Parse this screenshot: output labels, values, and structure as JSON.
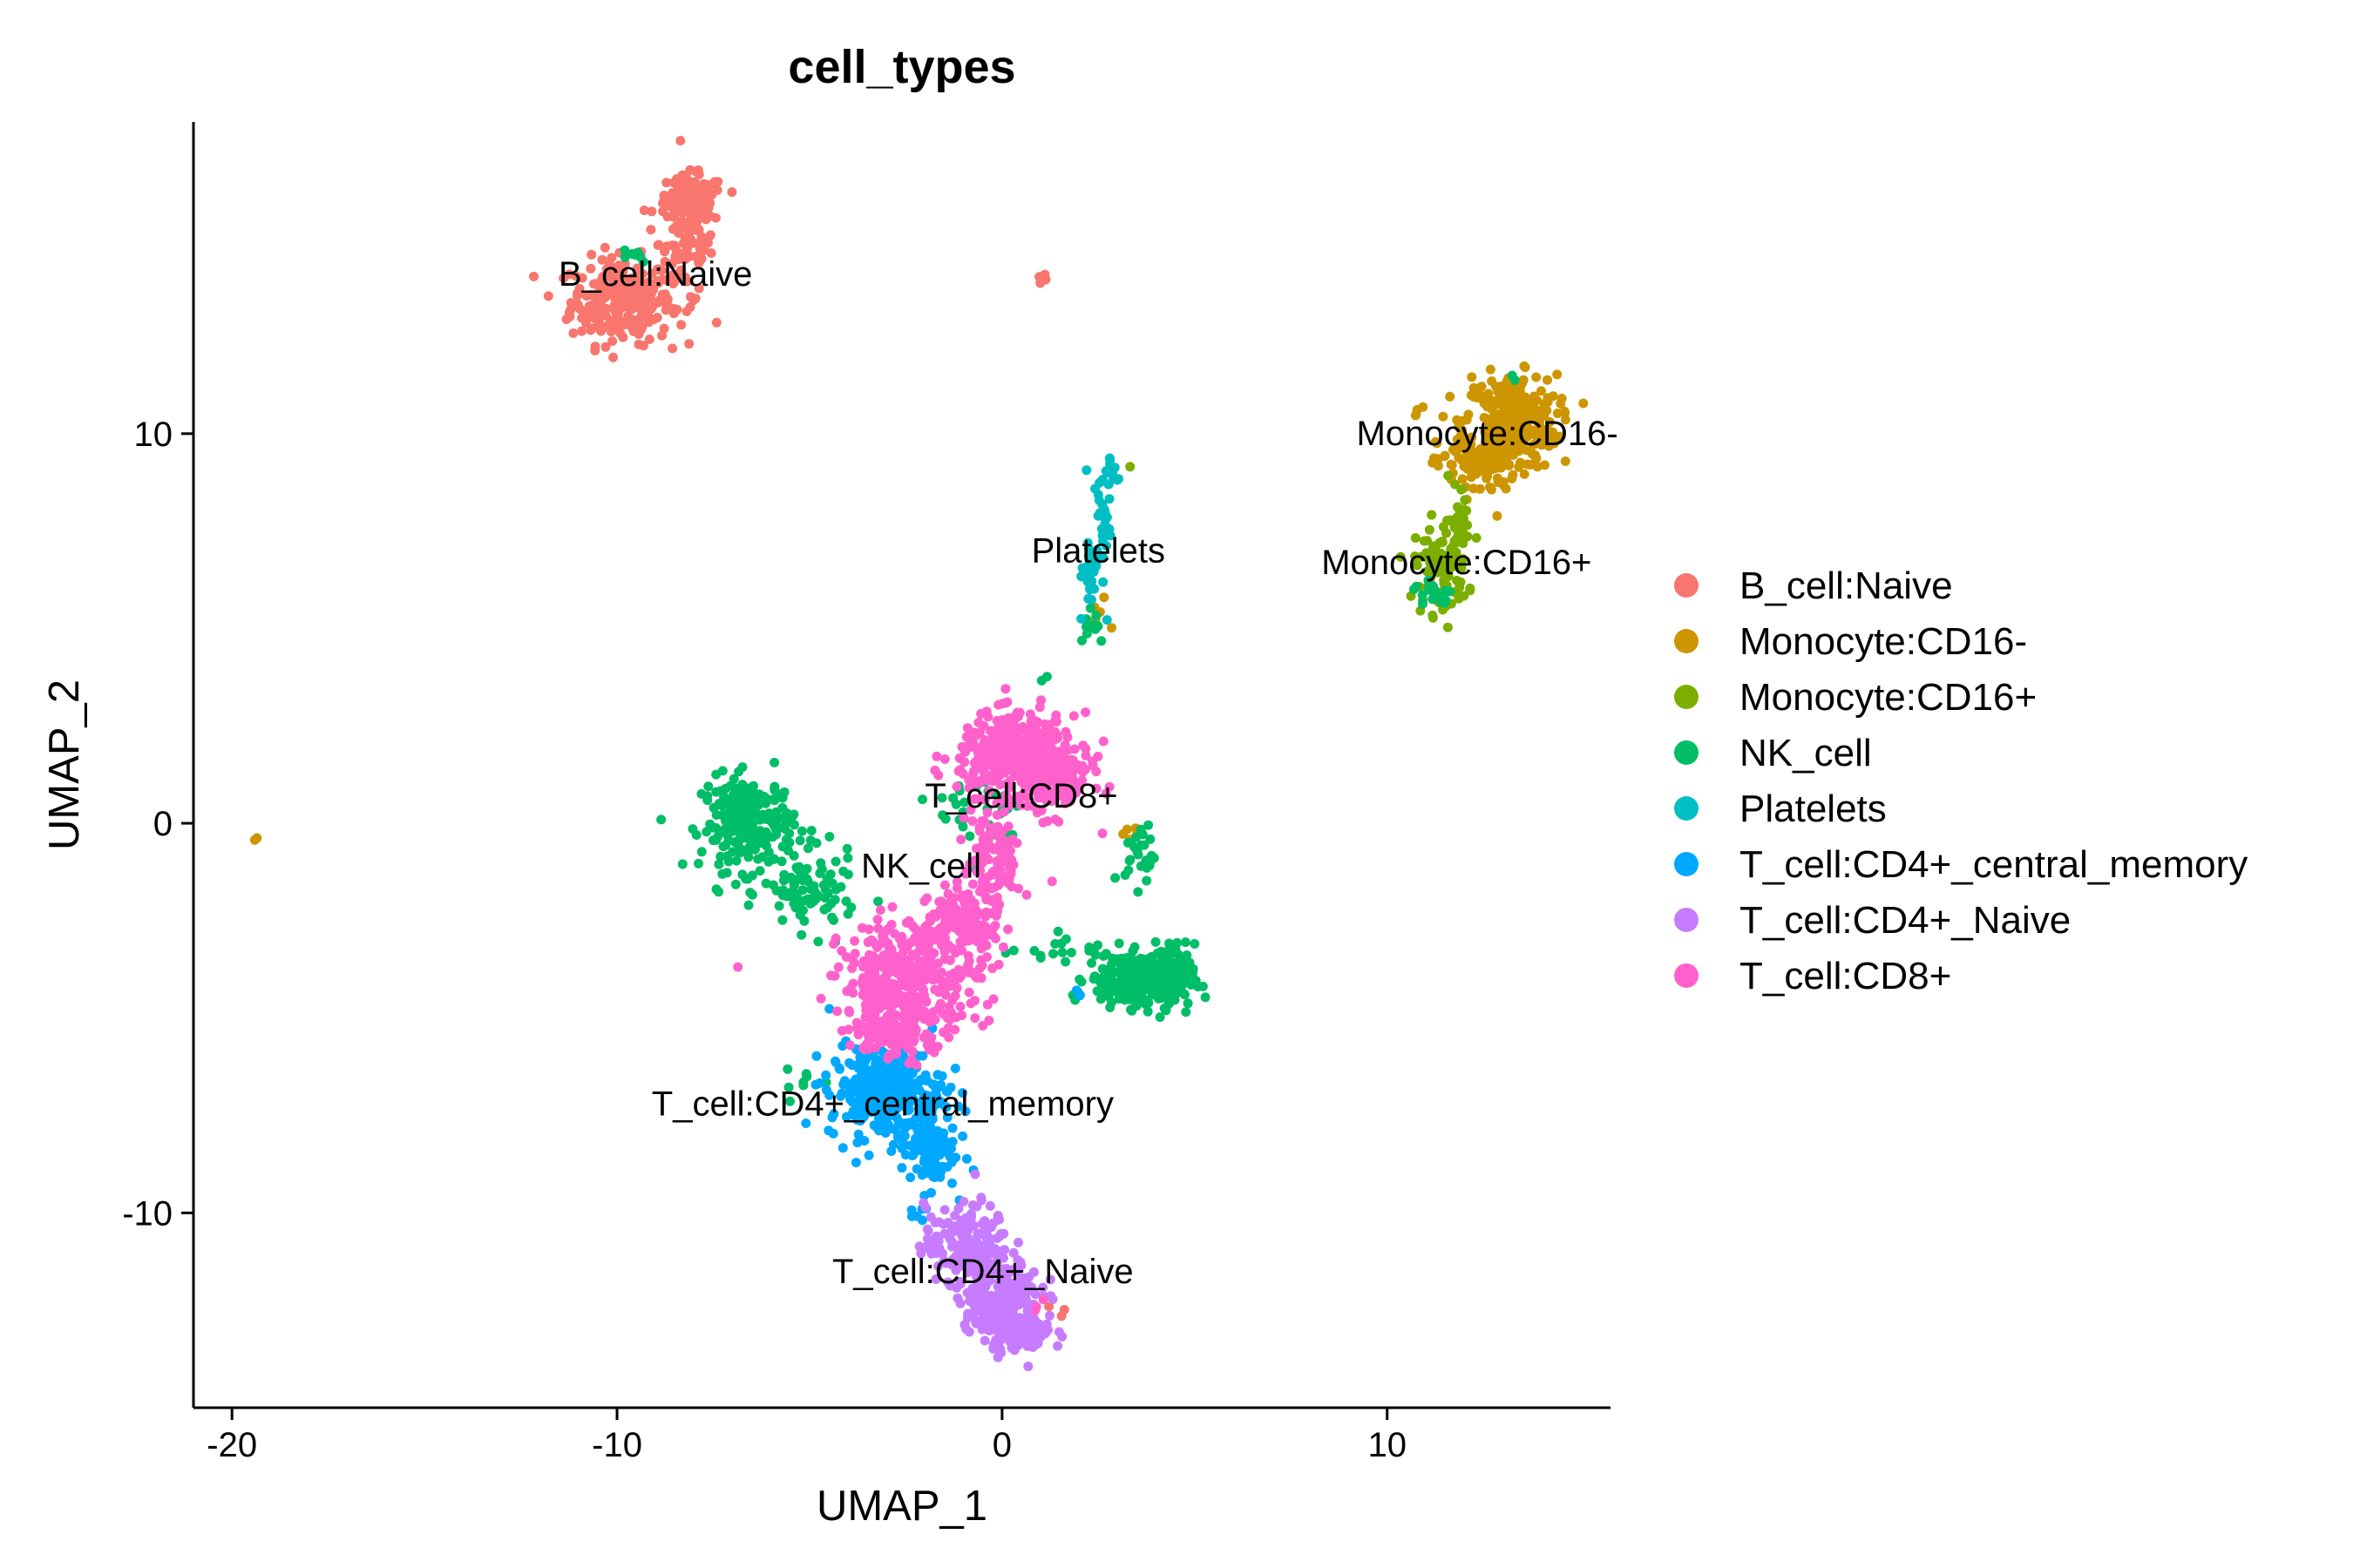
{
  "chart_data": {
    "type": "scatter",
    "title": "cell_types",
    "xlabel": "UMAP_1",
    "ylabel": "UMAP_2",
    "xlim": [
      -21,
      15.8
    ],
    "ylim": [
      -15,
      18
    ],
    "xticks": [
      -20,
      -10,
      0,
      10
    ],
    "yticks": [
      -10,
      0,
      10
    ],
    "grid": false,
    "legend_position": "right",
    "series": [
      {
        "name": "B_cell:Naive",
        "color": "#F8766D",
        "clusters": [
          {
            "cx": -9.9,
            "cy": 13.4,
            "sx": 0.65,
            "sy": 0.55,
            "n": 260
          },
          {
            "cx": -8.2,
            "cy": 14.9,
            "sx": 0.35,
            "sy": 0.8,
            "n": 110
          },
          {
            "cx": -8.1,
            "cy": 16.0,
            "sx": 0.45,
            "sy": 0.3,
            "n": 90
          },
          {
            "cx": 1.1,
            "cy": 14.0,
            "sx": 0.1,
            "sy": 0.08,
            "n": 4
          },
          {
            "cx": 1.5,
            "cy": -12.5,
            "sx": 0.1,
            "sy": 0.1,
            "n": 3
          }
        ]
      },
      {
        "name": "Monocyte:CD16-",
        "color": "#CD9600",
        "clusters": [
          {
            "cx": 13.2,
            "cy": 10.3,
            "sx": 0.6,
            "sy": 0.6,
            "n": 330
          },
          {
            "cx": 12.3,
            "cy": 9.2,
            "sx": 0.5,
            "sy": 0.4,
            "n": 80
          },
          {
            "cx": 10.8,
            "cy": 10.5,
            "sx": 0.15,
            "sy": 0.1,
            "n": 4
          },
          {
            "cx": 3.4,
            "cy": -0.3,
            "sx": 0.2,
            "sy": 0.15,
            "n": 5
          },
          {
            "cx": 2.5,
            "cy": 5.3,
            "sx": 0.15,
            "sy": 0.3,
            "n": 5
          },
          {
            "cx": -19.4,
            "cy": -0.4,
            "sx": 0.05,
            "sy": 0.05,
            "n": 2
          }
        ]
      },
      {
        "name": "Monocyte:CD16+",
        "color": "#7CAE00",
        "clusters": [
          {
            "cx": 11.4,
            "cy": 6.6,
            "sx": 0.35,
            "sy": 0.6,
            "n": 90
          },
          {
            "cx": 11.9,
            "cy": 7.8,
            "sx": 0.2,
            "sy": 0.5,
            "n": 30
          },
          {
            "cx": 3.3,
            "cy": 9.1,
            "sx": 0.05,
            "sy": 0.05,
            "n": 1
          }
        ]
      },
      {
        "name": "NK_cell",
        "color": "#00BE67",
        "clusters": [
          {
            "cx": -6.6,
            "cy": 0.0,
            "sx": 0.6,
            "sy": 0.6,
            "n": 230
          },
          {
            "cx": -5.0,
            "cy": -1.8,
            "sx": 0.6,
            "sy": 0.5,
            "n": 90
          },
          {
            "cx": 3.3,
            "cy": -4.0,
            "sx": 0.55,
            "sy": 0.35,
            "n": 180
          },
          {
            "cx": 4.3,
            "cy": -4.0,
            "sx": 0.35,
            "sy": 0.45,
            "n": 120
          },
          {
            "cx": 3.6,
            "cy": -0.8,
            "sx": 0.2,
            "sy": 0.4,
            "n": 30
          },
          {
            "cx": 1.2,
            "cy": -3.2,
            "sx": 0.6,
            "sy": 0.2,
            "n": 15
          },
          {
            "cx": -0.5,
            "cy": 0.3,
            "sx": 0.6,
            "sy": 0.6,
            "n": 35
          },
          {
            "cx": -9.6,
            "cy": 14.6,
            "sx": 0.25,
            "sy": 0.1,
            "n": 8
          },
          {
            "cx": 2.3,
            "cy": 5.2,
            "sx": 0.2,
            "sy": 0.3,
            "n": 12
          },
          {
            "cx": 1.1,
            "cy": 3.7,
            "sx": 0.1,
            "sy": 0.1,
            "n": 2
          },
          {
            "cx": 11.2,
            "cy": 5.9,
            "sx": 0.25,
            "sy": 0.2,
            "n": 20
          },
          {
            "cx": 13.3,
            "cy": 11.5,
            "sx": 0.05,
            "sy": 0.05,
            "n": 2
          },
          {
            "cx": -5.0,
            "cy": -6.7,
            "sx": 0.3,
            "sy": 0.2,
            "n": 8
          }
        ]
      },
      {
        "name": "Platelets",
        "color": "#00BFC4",
        "clusters": [
          {
            "cx": 2.3,
            "cy": 6.3,
            "sx": 0.15,
            "sy": 0.5,
            "n": 30
          },
          {
            "cx": 2.6,
            "cy": 7.8,
            "sx": 0.12,
            "sy": 0.6,
            "n": 30
          },
          {
            "cx": 2.85,
            "cy": 8.9,
            "sx": 0.1,
            "sy": 0.35,
            "n": 15
          }
        ]
      },
      {
        "name": "T_cell:CD4+_central_memory",
        "color": "#00A9FF",
        "clusters": [
          {
            "cx": -3.0,
            "cy": -6.9,
            "sx": 0.75,
            "sy": 0.6,
            "n": 300
          },
          {
            "cx": -1.9,
            "cy": -8.4,
            "sx": 0.35,
            "sy": 0.5,
            "n": 100
          },
          {
            "cx": -2.2,
            "cy": -10.0,
            "sx": 0.1,
            "sy": 0.15,
            "n": 5
          },
          {
            "cx": 2.0,
            "cy": -4.5,
            "sx": 0.1,
            "sy": 0.1,
            "n": 3
          }
        ]
      },
      {
        "name": "T_cell:CD4+_Naive",
        "color": "#C77CFF",
        "clusters": [
          {
            "cx": -0.9,
            "cy": -10.8,
            "sx": 0.55,
            "sy": 0.5,
            "n": 180
          },
          {
            "cx": -0.1,
            "cy": -12.1,
            "sx": 0.55,
            "sy": 0.45,
            "n": 180
          },
          {
            "cx": 0.4,
            "cy": -13.0,
            "sx": 0.45,
            "sy": 0.3,
            "n": 110
          }
        ]
      },
      {
        "name": "T_cell:CD8+",
        "color": "#FF61CC",
        "clusters": [
          {
            "cx": 0.4,
            "cy": 1.8,
            "sx": 0.75,
            "sy": 0.5,
            "n": 380
          },
          {
            "cx": 1.2,
            "cy": 1.1,
            "sx": 0.55,
            "sy": 0.45,
            "n": 150
          },
          {
            "cx": -0.2,
            "cy": -0.9,
            "sx": 0.35,
            "sy": 0.65,
            "n": 110
          },
          {
            "cx": -1.0,
            "cy": -2.6,
            "sx": 0.45,
            "sy": 0.5,
            "n": 140
          },
          {
            "cx": -2.4,
            "cy": -4.0,
            "sx": 0.9,
            "sy": 0.75,
            "n": 380
          },
          {
            "cx": -2.9,
            "cy": -5.4,
            "sx": 0.45,
            "sy": 0.35,
            "n": 80
          },
          {
            "cx": -6.8,
            "cy": -3.6,
            "sx": 0.05,
            "sy": 0.05,
            "n": 1
          },
          {
            "cx": 1.0,
            "cy": -12.4,
            "sx": 0.15,
            "sy": 0.15,
            "n": 3
          }
        ]
      }
    ],
    "cluster_labels": [
      {
        "text": "B_cell:Naive",
        "x": -9.0,
        "y": 13.8
      },
      {
        "text": "Monocyte:CD16-",
        "x": 12.6,
        "y": 9.7
      },
      {
        "text": "Platelets",
        "x": 2.5,
        "y": 6.7
      },
      {
        "text": "Monocyte:CD16+",
        "x": 11.8,
        "y": 6.4
      },
      {
        "text": "T_cell:CD8+",
        "x": 0.5,
        "y": 0.4
      },
      {
        "text": "NK_cell",
        "x": -2.1,
        "y": -1.4
      },
      {
        "text": "T_cell:CD4+_central_memory",
        "x": -3.1,
        "y": -7.5
      },
      {
        "text": "T_cell:CD4+_Naive",
        "x": -0.5,
        "y": -11.8
      }
    ]
  }
}
